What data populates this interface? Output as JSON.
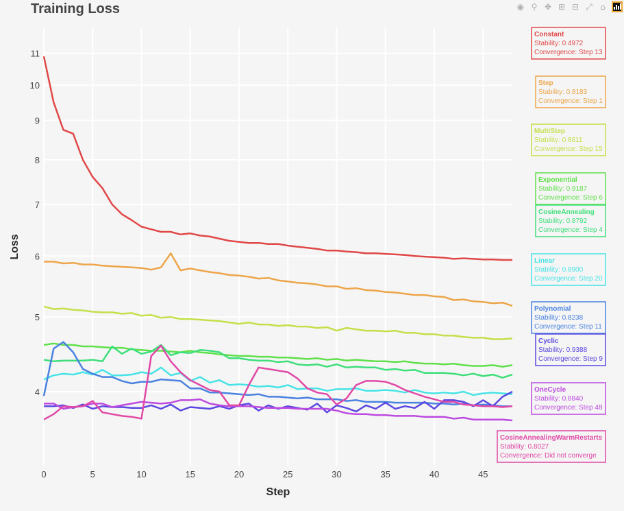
{
  "chart_data": {
    "type": "line",
    "title": "Training Loss",
    "xlabel": "Step",
    "ylabel": "Loss",
    "y_scale": "log",
    "xlim": [
      0,
      48
    ],
    "ylim_log10": [
      0.505,
      1.075
    ],
    "x_ticks": [
      0,
      5,
      10,
      15,
      20,
      25,
      30,
      35,
      40,
      45
    ],
    "y_ticks": [
      4,
      5,
      6,
      7,
      8,
      9,
      10,
      11
    ],
    "grid": true,
    "legend": "none",
    "series": [
      {
        "name": "Constant",
        "color": "#e04848",
        "stability": "0.4972",
        "convergence": "Step 13",
        "values": [
          10.9,
          9.5,
          8.75,
          8.65,
          8.0,
          7.6,
          7.35,
          7.0,
          6.8,
          6.68,
          6.55,
          6.5,
          6.45,
          6.45,
          6.4,
          6.42,
          6.38,
          6.36,
          6.32,
          6.28,
          6.26,
          6.24,
          6.24,
          6.22,
          6.22,
          6.19,
          6.17,
          6.15,
          6.13,
          6.1,
          6.1,
          6.08,
          6.07,
          6.05,
          6.05,
          6.04,
          6.03,
          6.02,
          6.0,
          5.99,
          5.98,
          5.97,
          5.95,
          5.96,
          5.95,
          5.94,
          5.94,
          5.93,
          5.93
        ]
      },
      {
        "name": "Step",
        "color": "#eda54a",
        "stability": "0.8183",
        "convergence": "Step 1",
        "values": [
          5.9,
          5.9,
          5.87,
          5.88,
          5.85,
          5.85,
          5.83,
          5.82,
          5.81,
          5.8,
          5.79,
          5.76,
          5.8,
          6.05,
          5.75,
          5.78,
          5.75,
          5.72,
          5.7,
          5.67,
          5.66,
          5.64,
          5.61,
          5.62,
          5.58,
          5.56,
          5.54,
          5.53,
          5.51,
          5.48,
          5.48,
          5.44,
          5.45,
          5.42,
          5.41,
          5.39,
          5.38,
          5.36,
          5.34,
          5.34,
          5.32,
          5.31,
          5.26,
          5.27,
          5.24,
          5.23,
          5.21,
          5.22,
          5.17
        ]
      },
      {
        "name": "MultiStep",
        "color": "#c3e04a",
        "stability": "0.8611",
        "convergence": "Step 15",
        "values": [
          5.16,
          5.12,
          5.13,
          5.11,
          5.1,
          5.08,
          5.07,
          5.07,
          5.05,
          5.06,
          5.02,
          5.03,
          4.99,
          5.0,
          4.97,
          4.97,
          4.96,
          4.95,
          4.94,
          4.92,
          4.9,
          4.92,
          4.89,
          4.89,
          4.87,
          4.88,
          4.86,
          4.86,
          4.84,
          4.85,
          4.8,
          4.84,
          4.82,
          4.8,
          4.8,
          4.79,
          4.8,
          4.77,
          4.77,
          4.75,
          4.75,
          4.73,
          4.73,
          4.71,
          4.7,
          4.7,
          4.68,
          4.68,
          4.69
        ]
      },
      {
        "name": "Exponential",
        "color": "#5fe04a",
        "stability": "0.9187",
        "convergence": "Step 6",
        "values": [
          4.6,
          4.62,
          4.6,
          4.6,
          4.58,
          4.58,
          4.57,
          4.56,
          4.56,
          4.54,
          4.53,
          4.52,
          4.52,
          4.51,
          4.5,
          4.52,
          4.5,
          4.49,
          4.47,
          4.46,
          4.45,
          4.45,
          4.44,
          4.44,
          4.43,
          4.43,
          4.42,
          4.41,
          4.42,
          4.4,
          4.41,
          4.39,
          4.4,
          4.39,
          4.38,
          4.38,
          4.37,
          4.38,
          4.36,
          4.35,
          4.35,
          4.34,
          4.35,
          4.33,
          4.32,
          4.32,
          4.33,
          4.31,
          4.33
        ]
      },
      {
        "name": "CosineAnnealing",
        "color": "#3edf7a",
        "stability": "0.8792",
        "convergence": "Step 4",
        "values": [
          4.4,
          4.38,
          4.39,
          4.39,
          4.39,
          4.4,
          4.38,
          4.58,
          4.48,
          4.55,
          4.48,
          4.51,
          4.6,
          4.46,
          4.5,
          4.49,
          4.53,
          4.52,
          4.5,
          4.42,
          4.42,
          4.4,
          4.39,
          4.39,
          4.37,
          4.38,
          4.34,
          4.33,
          4.34,
          4.31,
          4.34,
          4.3,
          4.31,
          4.3,
          4.3,
          4.27,
          4.28,
          4.26,
          4.27,
          4.23,
          4.23,
          4.23,
          4.22,
          4.2,
          4.22,
          4.19,
          4.21,
          4.17,
          4.21
        ]
      },
      {
        "name": "Linear",
        "color": "#47e3e6",
        "stability": "0.8900",
        "convergence": "Step 20",
        "values": [
          4.15,
          4.2,
          4.22,
          4.21,
          4.24,
          4.21,
          4.27,
          4.2,
          4.2,
          4.21,
          4.24,
          4.22,
          4.3,
          4.2,
          4.23,
          4.13,
          4.18,
          4.11,
          4.14,
          4.08,
          4.09,
          4.08,
          4.06,
          4.07,
          4.05,
          4.08,
          4.03,
          4.04,
          4.04,
          4.01,
          4.03,
          4.03,
          4.04,
          4.01,
          4.01,
          4.02,
          4.01,
          3.99,
          4.02,
          3.99,
          3.98,
          3.99,
          3.98,
          4.0,
          3.96,
          3.98,
          3.99,
          3.98,
          3.97
        ]
      },
      {
        "name": "Polynomial",
        "color": "#4a82e0",
        "stability": "0.8238",
        "convergence": "Step 11",
        "values": [
          3.95,
          4.55,
          4.64,
          4.5,
          4.28,
          4.22,
          4.18,
          4.18,
          4.13,
          4.1,
          4.12,
          4.12,
          4.15,
          4.14,
          4.13,
          4.04,
          4.04,
          3.99,
          3.99,
          3.98,
          3.97,
          3.96,
          3.97,
          3.94,
          3.94,
          3.93,
          3.92,
          3.93,
          3.91,
          3.91,
          3.91,
          3.89,
          3.9,
          3.88,
          3.88,
          3.88,
          3.87,
          3.87,
          3.87,
          3.87,
          3.86,
          3.86,
          3.85,
          3.86,
          3.84,
          3.85,
          3.84,
          3.83,
          3.83
        ]
      },
      {
        "name": "Cyclic",
        "color": "#5a48e0",
        "stability": "0.9388",
        "convergence": "Step 9",
        "values": [
          3.83,
          3.83,
          3.84,
          3.81,
          3.85,
          3.8,
          3.83,
          3.82,
          3.82,
          3.81,
          3.81,
          3.84,
          3.8,
          3.85,
          3.78,
          3.82,
          3.81,
          3.8,
          3.83,
          3.8,
          3.84,
          3.86,
          3.78,
          3.84,
          3.8,
          3.83,
          3.81,
          3.79,
          3.86,
          3.76,
          3.84,
          3.81,
          3.77,
          3.84,
          3.8,
          3.87,
          3.8,
          3.83,
          3.81,
          3.88,
          3.8,
          3.9,
          3.9,
          3.88,
          3.83,
          3.9,
          3.83,
          3.94,
          4.0
        ]
      },
      {
        "name": "OneCycle",
        "color": "#bd4ae0",
        "stability": "0.8840",
        "convergence": "Step 48",
        "values": [
          3.86,
          3.86,
          3.8,
          3.82,
          3.83,
          3.86,
          3.86,
          3.82,
          3.84,
          3.86,
          3.88,
          3.87,
          3.86,
          3.87,
          3.9,
          3.9,
          3.91,
          3.86,
          3.84,
          3.83,
          3.83,
          3.83,
          3.82,
          3.81,
          3.81,
          3.81,
          3.8,
          3.8,
          3.8,
          3.8,
          3.78,
          3.75,
          3.74,
          3.74,
          3.73,
          3.73,
          3.72,
          3.72,
          3.72,
          3.71,
          3.71,
          3.71,
          3.69,
          3.7,
          3.68,
          3.68,
          3.68,
          3.68,
          3.67
        ]
      },
      {
        "name": "CosineAnnealingWarmRestarts",
        "color": "#e048a6",
        "stability": "0.8027",
        "convergence": "Did not converge",
        "values": [
          3.68,
          3.74,
          3.83,
          3.82,
          3.83,
          3.89,
          3.76,
          3.74,
          3.72,
          3.71,
          3.69,
          4.45,
          4.59,
          4.38,
          4.24,
          4.14,
          4.08,
          4.02,
          4.0,
          3.84,
          3.84,
          4.08,
          4.3,
          4.28,
          4.26,
          4.24,
          4.16,
          4.04,
          3.99,
          3.97,
          3.85,
          3.92,
          4.08,
          4.13,
          4.13,
          4.12,
          4.08,
          4.02,
          3.98,
          3.94,
          3.91,
          3.88,
          3.88,
          3.85,
          3.84,
          3.83,
          3.83,
          3.82,
          3.83
        ]
      }
    ]
  },
  "annotations": [
    {
      "series": "Constant",
      "title": "Constant",
      "stability": "Stability: 0.4972",
      "convergence": "Convergence: Step 13"
    },
    {
      "series": "Step",
      "title": "Step",
      "stability": "Stability: 0.8183",
      "convergence": "Convergence: Step 1"
    },
    {
      "series": "MultiStep",
      "title": "MultiStep",
      "stability": "Stability: 0.8611",
      "convergence": "Convergence: Step 15"
    },
    {
      "series": "Exponential",
      "title": "Exponential",
      "stability": "Stability: 0.9187",
      "convergence": "Convergence: Step 6"
    },
    {
      "series": "CosineAnnealing",
      "title": "CosineAnnealing",
      "stability": "Stability: 0.8792",
      "convergence": "Convergence: Step 4"
    },
    {
      "series": "Linear",
      "title": "Linear",
      "stability": "Stability: 0.8900",
      "convergence": "Convergence: Step 20"
    },
    {
      "series": "Polynomial",
      "title": "Polynomial",
      "stability": "Stability: 0.8238",
      "convergence": "Convergence: Step 11"
    },
    {
      "series": "Cyclic",
      "title": "Cyclic",
      "stability": "Stability: 0.9388",
      "convergence": "Convergence: Step 9"
    },
    {
      "series": "OneCycle",
      "title": "OneCycle",
      "stability": "Stability: 0.8840",
      "convergence": "Convergence: Step 48"
    },
    {
      "series": "CosineAnnealingWarmRestarts",
      "title": "CosineAnnealingWarmRestarts",
      "stability": "Stability: 0.8027",
      "convergence": "Convergence: Did not converge"
    }
  ],
  "modebar": {
    "icons": [
      "camera-icon",
      "zoom-icon",
      "pan-icon",
      "zoom-in-icon",
      "zoom-out-icon",
      "autoscale-icon",
      "reset-axes-icon",
      "plotly-logo-icon"
    ]
  }
}
